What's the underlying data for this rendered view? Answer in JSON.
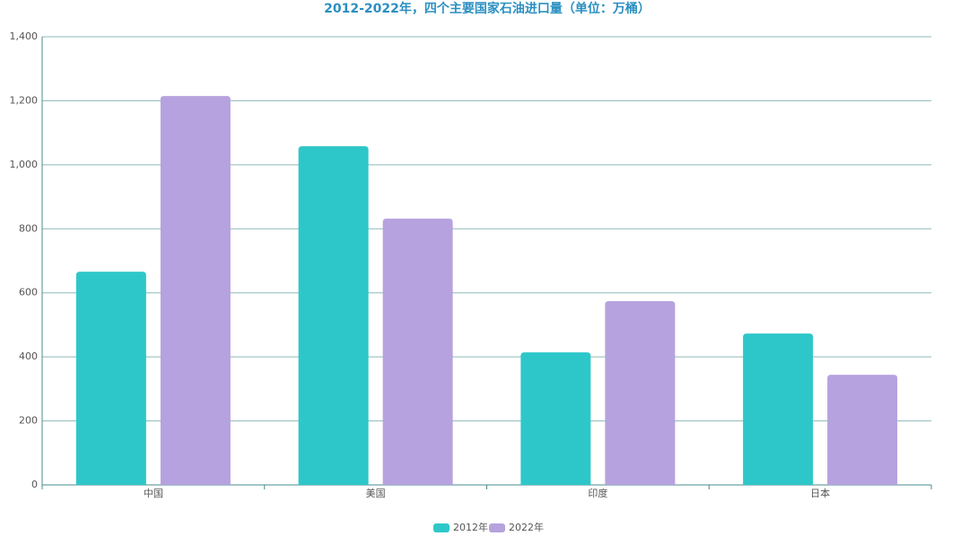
{
  "chart_data": {
    "type": "bar",
    "title": "2012-2022年，四个主要国家石油进口量（单位：万桶）",
    "categories": [
      "中国",
      "美国",
      "印度",
      "日本"
    ],
    "series": [
      {
        "name": "2012年",
        "color": "#2ec7c9",
        "values": [
          666,
          1058,
          414,
          473
        ]
      },
      {
        "name": "2022年",
        "color": "#b6a2de",
        "values": [
          1215,
          832,
          574,
          344
        ]
      }
    ],
    "ylim": [
      0,
      1400
    ],
    "yticks": [
      0,
      200,
      400,
      600,
      800,
      {
        "value": 1000,
        "label": "1,000"
      },
      {
        "value": 1200,
        "label": "1,200"
      },
      {
        "value": 1400,
        "label": "1,400"
      }
    ],
    "grid": true,
    "legend": "bottom"
  }
}
